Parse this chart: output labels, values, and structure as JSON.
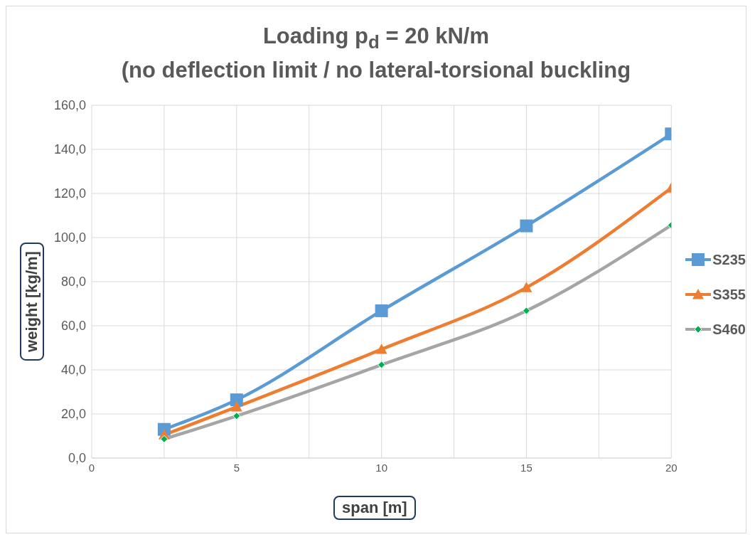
{
  "chart_data": {
    "type": "line",
    "title": "Loading p$_{d}$ = 20 kN/m",
    "subtitle": "(no deflection limit / no lateral-torsional buckling",
    "xlabel": "span [m]",
    "ylabel": "weight [kg/m]",
    "x": [
      2.5,
      5,
      10,
      15,
      20
    ],
    "series": [
      {
        "name": "S235",
        "color": "#5b9bd5",
        "marker": "square",
        "values": [
          13.0,
          26.4,
          66.8,
          105.3,
          147.0
        ]
      },
      {
        "name": "S355",
        "color": "#ed7d31",
        "marker": "triangle",
        "values": [
          10.5,
          23.2,
          49.3,
          77.3,
          122.5
        ]
      },
      {
        "name": "S460",
        "color": "#a5a5a5",
        "marker": "diamond",
        "colors": [
          "#00b050",
          "#00b050",
          "#00b050",
          "#00b050",
          "#00b050"
        ],
        "values": [
          8.6,
          19.1,
          42.3,
          66.8,
          105.6
        ]
      }
    ],
    "xlim": [
      0,
      20
    ],
    "xticks": [
      0,
      {
        "value": 2.5,
        "label": null
      },
      5,
      {
        "value": 7.5,
        "label": null
      },
      10,
      {
        "value": 12.5,
        "label": null
      },
      15,
      {
        "value": 17.5,
        "label": null
      },
      20
    ],
    "ylim": [
      0,
      160
    ],
    "yticks": [
      {
        "value": 0,
        "label": "0,0"
      },
      {
        "value": 20,
        "label": "20,0"
      },
      {
        "value": 40,
        "label": "40,0"
      },
      {
        "value": 60,
        "label": "60,0"
      },
      {
        "value": 80,
        "label": "80,0"
      },
      {
        "value": 100,
        "label": "100,0"
      },
      {
        "value": 120,
        "label": "120,0"
      },
      {
        "value": 140,
        "label": "140,0"
      },
      {
        "value": 160,
        "label": "160,0"
      }
    ],
    "grid": true,
    "legend": "right",
    "line_style": "solid"
  }
}
